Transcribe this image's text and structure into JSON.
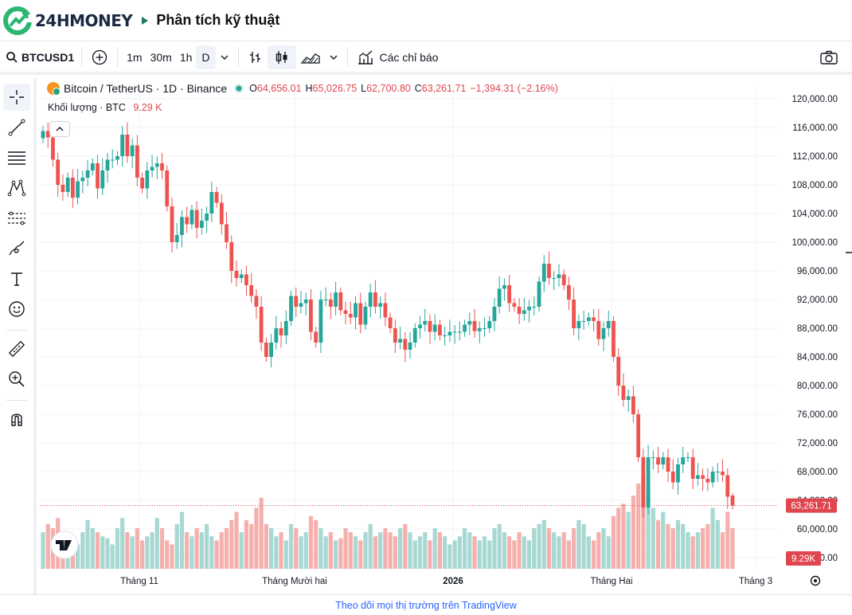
{
  "header": {
    "brand": "24HMONEY",
    "title": "Phân tích kỹ thuật"
  },
  "toolbar": {
    "symbol": "BTCUSD1",
    "intervals": [
      "1m",
      "30m",
      "1h",
      "D"
    ],
    "active_interval": "D",
    "indicators_label": "Các chỉ báo"
  },
  "legend": {
    "title": "Bitcoin / TetherUS · 1D · Binance",
    "open_key": "O",
    "open": "64,656.01",
    "high_key": "H",
    "high": "65,026.75",
    "low_key": "L",
    "low": "62,700.80",
    "close_key": "C",
    "close": "63,261.71",
    "change": "−1,394.31 (−2.16%)",
    "volume_label": "Khối lượng · BTC",
    "volume_value": "9.29 K"
  },
  "footer": {
    "text": "Theo dõi mọi thị trường trên TradingView"
  },
  "colors": {
    "up": "#26a69a",
    "down": "#ef5350",
    "vol_up": "#a8d8d2",
    "vol_down": "#f5b0ae",
    "price_label": "#e0464f"
  },
  "chart_data": {
    "type": "candlestick",
    "y_ticks": [
      "120,000.00",
      "116,000.00",
      "112,000.00",
      "108,000.00",
      "104,000.00",
      "100,000.00",
      "96,000.00",
      "92,000.00",
      "88,000.00",
      "84,000.00",
      "80,000.00",
      "76,000.00",
      "72,000.00",
      "68,000.00",
      "64,000.00",
      "60,000.00",
      "56,000.00"
    ],
    "ylim": [
      56000,
      120000
    ],
    "x_ticks": [
      "Tháng 11",
      "Tháng Mười hai",
      "2026",
      "Tháng Hai",
      "Tháng 3"
    ],
    "last_price_label": "63,261.71",
    "volume_label": "9.29K",
    "closes": [
      115500,
      114600,
      111500,
      108000,
      107000,
      109000,
      106200,
      108500,
      109000,
      110000,
      111000,
      107500,
      110000,
      111500,
      111500,
      112000,
      115000,
      112000,
      113500,
      109000,
      107500,
      110000,
      110500,
      111000,
      110000,
      105000,
      100000,
      101000,
      103500,
      102500,
      104500,
      102000,
      103000,
      104000,
      107000,
      105500,
      102500,
      100000,
      96000,
      95000,
      95500,
      94000,
      92500,
      91000,
      86000,
      84000,
      86000,
      88000,
      87000,
      89000,
      92500,
      91000,
      91500,
      92000,
      87500,
      86000,
      92000,
      92000,
      91000,
      93000,
      90500,
      90000,
      89500,
      91500,
      88500,
      91000,
      93000,
      91000,
      91500,
      89500,
      88000,
      86000,
      86500,
      85000,
      86000,
      88000,
      88500,
      89000,
      87500,
      88500,
      87000,
      87000,
      87500,
      87500,
      87500,
      88500,
      89000,
      87600,
      88000,
      88000,
      89000,
      91000,
      93500,
      94000,
      91500,
      91000,
      90000,
      90500,
      91000,
      91000,
      94500,
      97000,
      95000,
      95000,
      95500,
      94000,
      92000,
      88000,
      89000,
      89000,
      89500,
      89000,
      86500,
      88000,
      89000,
      84000,
      80000,
      78000,
      78500,
      76000,
      70000,
      63000,
      70000,
      70000,
      69000,
      70000,
      68000,
      66500,
      69000,
      70000,
      70000,
      67000,
      67500,
      67000,
      66500,
      68000,
      68000,
      67500,
      64500,
      63261.71
    ],
    "volumes": [
      18,
      22,
      20,
      25,
      18,
      14,
      16,
      12,
      18,
      24,
      20,
      18,
      16,
      15,
      12,
      20,
      25,
      18,
      16,
      20,
      14,
      16,
      18,
      25,
      20,
      14,
      12,
      22,
      28,
      18,
      16,
      20,
      18,
      22,
      16,
      14,
      18,
      20,
      24,
      28,
      18,
      24,
      22,
      30,
      35,
      22,
      20,
      16,
      18,
      14,
      22,
      20,
      16,
      18,
      26,
      24,
      20,
      16,
      18,
      14,
      15,
      20,
      18,
      16,
      14,
      18,
      22,
      16,
      18,
      20,
      18,
      16,
      20,
      22,
      18,
      14,
      16,
      18,
      14,
      20,
      18,
      16,
      12,
      14,
      16,
      20,
      18,
      16,
      14,
      16,
      14,
      20,
      22,
      18,
      16,
      14,
      18,
      16,
      14,
      20,
      22,
      24,
      20,
      18,
      16,
      18,
      14,
      20,
      24,
      22,
      16,
      14,
      18,
      20,
      16,
      26,
      30,
      32,
      28,
      36,
      42,
      46,
      38,
      30,
      24,
      28,
      22,
      20,
      24,
      22,
      18,
      16,
      18,
      20,
      22,
      30,
      24,
      18,
      28,
      20
    ]
  }
}
